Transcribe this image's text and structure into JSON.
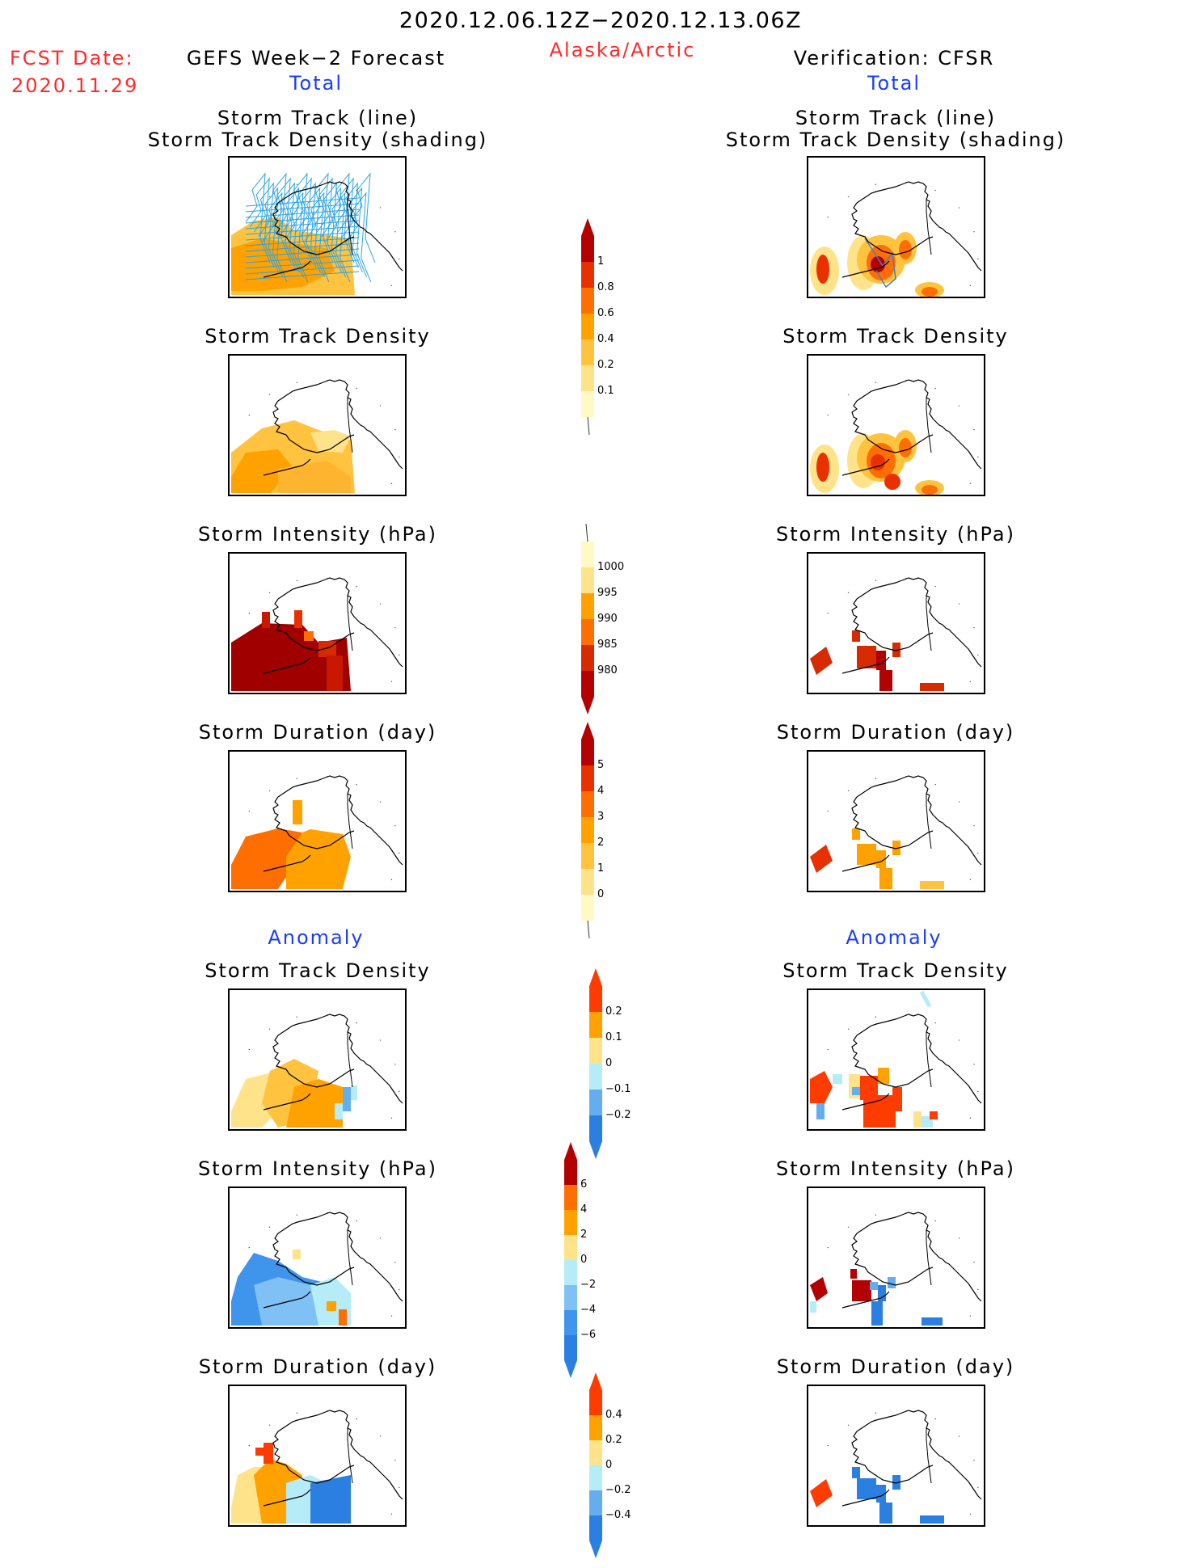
{
  "header": {
    "date_range": "2020.12.06.12Z−2020.12.13.06Z",
    "region": "Alaska/Arctic",
    "fcst_label": "FCST Date:",
    "fcst_date": "2020.11.29",
    "left_title": "GEFS Week−2 Forecast",
    "right_title": "Verification: CFSR",
    "left_section_total": "Total",
    "right_section_total": "Total",
    "left_section_anomaly": "Anomaly",
    "right_section_anomaly": "Anomaly"
  },
  "panels": {
    "track_line": "Storm Track (line)",
    "track_density_shading": "Storm Track Density (shading)",
    "track_density": "Storm Track Density",
    "intensity": "Storm Intensity (hPa)",
    "duration": "Storm Duration (day)"
  },
  "colorbars": {
    "density": [
      "1",
      "0.8",
      "0.6",
      "0.4",
      "0.2",
      "0.1"
    ],
    "intensity": [
      "1000",
      "995",
      "990",
      "985",
      "980"
    ],
    "duration": [
      "5",
      "4",
      "3",
      "2",
      "1",
      "0"
    ],
    "density_anom": [
      "0.2",
      "0.1",
      "0",
      "−0.1",
      "−0.2"
    ],
    "intensity_anom": [
      "6",
      "4",
      "2",
      "0",
      "−2",
      "−4",
      "−6"
    ],
    "duration_anom": [
      "0.4",
      "0.2",
      "0",
      "−0.2",
      "−0.4"
    ]
  },
  "colors": {
    "title_red": "#ff2a2a",
    "title_blue": "#1a3cff",
    "track_line": "#29a3e6"
  }
}
